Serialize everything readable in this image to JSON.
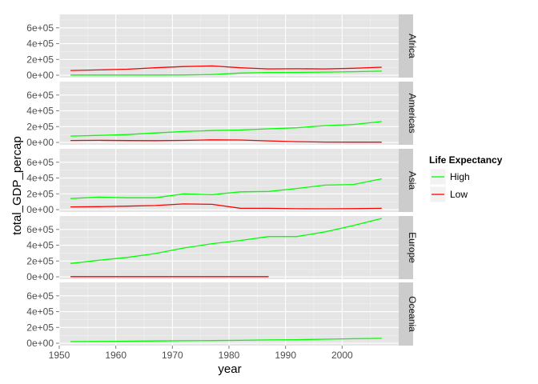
{
  "chart_data": {
    "type": "line",
    "facet_by": "continent",
    "panels": [
      "Africa",
      "Americas",
      "Asia",
      "Europe",
      "Oceania"
    ],
    "xlabel": "year",
    "ylabel": "total_GDP_percap",
    "xlim": [
      1950,
      2010
    ],
    "x_ticks": [
      1950,
      1960,
      1970,
      1980,
      1990,
      2000
    ],
    "x_tick_labels": [
      "1950",
      "1960",
      "1970",
      "1980",
      "1990",
      "2000"
    ],
    "ylim": [
      -30000,
      770000
    ],
    "y_ticks": [
      0,
      200000,
      400000,
      600000
    ],
    "y_tick_labels": [
      "0e+00",
      "2e+05",
      "4e+05",
      "6e+05"
    ],
    "grid": true,
    "legend": {
      "title": "Life Expectancy",
      "position": "right",
      "entries": [
        {
          "label": "High",
          "color": "#00ff00"
        },
        {
          "label": "Low",
          "color": "#ff0000"
        }
      ]
    },
    "series": [
      {
        "panel": "Africa",
        "name": "High",
        "color": "#00ff00",
        "x": [
          1952,
          1957,
          1962,
          1967,
          1972,
          1977,
          1982,
          1987,
          1992,
          1997,
          2002,
          2007
        ],
        "y": [
          2000,
          2000,
          2000,
          2000,
          3000,
          8000,
          28000,
          35000,
          36000,
          40000,
          45000,
          52000
        ]
      },
      {
        "panel": "Africa",
        "name": "Low",
        "color": "#ff0000",
        "x": [
          1952,
          1957,
          1962,
          1967,
          1972,
          1977,
          1982,
          1987,
          1992,
          1997,
          2002,
          2007
        ],
        "y": [
          60000,
          67000,
          76000,
          95000,
          110000,
          118000,
          95000,
          80000,
          82000,
          80000,
          88000,
          102000
        ]
      },
      {
        "panel": "Americas",
        "name": "High",
        "color": "#00ff00",
        "x": [
          1952,
          1957,
          1962,
          1967,
          1972,
          1977,
          1982,
          1987,
          1992,
          1997,
          2002,
          2007
        ],
        "y": [
          80000,
          90000,
          100000,
          120000,
          138000,
          150000,
          157000,
          173000,
          186000,
          213000,
          227000,
          265000
        ]
      },
      {
        "panel": "Americas",
        "name": "Low",
        "color": "#ff0000",
        "x": [
          1952,
          1957,
          1962,
          1967,
          1972,
          1977,
          1982,
          1987,
          1992,
          1997,
          2002,
          2007
        ],
        "y": [
          25000,
          27000,
          24000,
          23000,
          26000,
          33000,
          31000,
          20000,
          10000,
          4000,
          3000,
          3000
        ]
      },
      {
        "panel": "Asia",
        "name": "High",
        "color": "#00ff00",
        "x": [
          1952,
          1957,
          1962,
          1967,
          1972,
          1977,
          1982,
          1987,
          1992,
          1997,
          2002,
          2007
        ],
        "y": [
          140000,
          158000,
          150000,
          150000,
          200000,
          190000,
          225000,
          230000,
          268000,
          310000,
          318000,
          390000
        ]
      },
      {
        "panel": "Asia",
        "name": "Low",
        "color": "#ff0000",
        "x": [
          1952,
          1957,
          1962,
          1967,
          1972,
          1977,
          1982,
          1987,
          1992,
          1997,
          2002,
          2007
        ],
        "y": [
          35000,
          38000,
          44000,
          52000,
          72000,
          67000,
          18000,
          17000,
          12000,
          11000,
          13000,
          17000
        ]
      },
      {
        "panel": "Europe",
        "name": "High",
        "color": "#00ff00",
        "x": [
          1952,
          1957,
          1962,
          1967,
          1972,
          1977,
          1982,
          1987,
          1992,
          1997,
          2002,
          2007
        ],
        "y": [
          170000,
          210000,
          245000,
          295000,
          365000,
          420000,
          460000,
          510000,
          510000,
          570000,
          650000,
          740000
        ]
      },
      {
        "panel": "Europe",
        "name": "Low",
        "color": "#ff0000",
        "x": [
          1952,
          1957,
          1962,
          1967,
          1972,
          1977,
          1982,
          1987
        ],
        "y": [
          2000,
          2000,
          2000,
          2000,
          2000,
          2000,
          2000,
          2000
        ]
      },
      {
        "panel": "Oceania",
        "name": "High",
        "color": "#00ff00",
        "x": [
          1952,
          1957,
          1962,
          1967,
          1972,
          1977,
          1982,
          1987,
          1992,
          1997,
          2002,
          2007
        ],
        "y": [
          21000,
          23000,
          26000,
          29000,
          32000,
          34000,
          37000,
          42000,
          45000,
          51000,
          57000,
          62000
        ]
      }
    ]
  }
}
